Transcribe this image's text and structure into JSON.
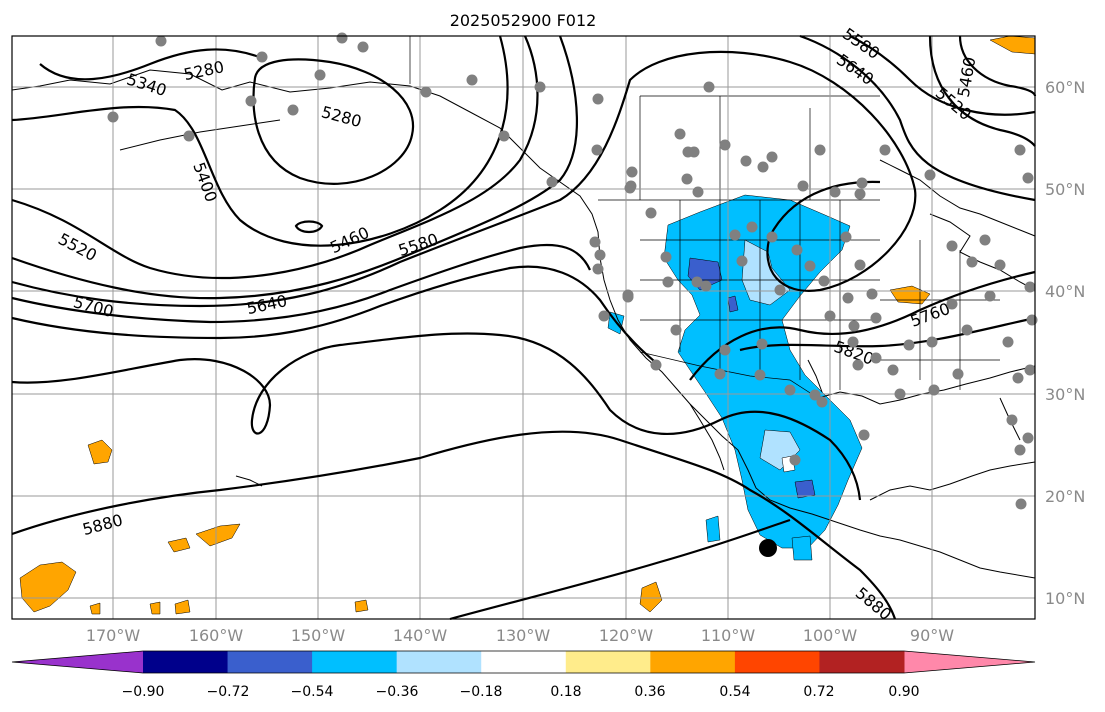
{
  "title": "2025052900 F012",
  "map": {
    "lat_labels": [
      "60°N",
      "50°N",
      "40°N",
      "30°N",
      "20°N",
      "10°N"
    ],
    "lon_labels": [
      "170°W",
      "160°W",
      "150°W",
      "140°W",
      "130°W",
      "120°W",
      "110°W",
      "100°W",
      "90°W"
    ],
    "contour_labels": [
      "5280",
      "5280",
      "5340",
      "5400",
      "5460",
      "5520",
      "5580",
      "5640",
      "5700",
      "5760",
      "5820",
      "5880",
      "5880",
      "5640",
      "5520",
      "5460",
      "5580"
    ],
    "station_color": "#808080",
    "marker_color": "#000000"
  },
  "colorbar": {
    "ticks": [
      "−0.90",
      "−0.72",
      "−0.54",
      "−0.36",
      "−0.18",
      "0.18",
      "0.36",
      "0.54",
      "0.72",
      "0.90"
    ],
    "colors": [
      "#9932cc",
      "#00008b",
      "#3a5fcd",
      "#00bfff",
      "#b0e2ff",
      "#ffffff",
      "#ffec8b",
      "#ffa500",
      "#ff4500",
      "#b22222",
      "#ff88aa"
    ]
  }
}
